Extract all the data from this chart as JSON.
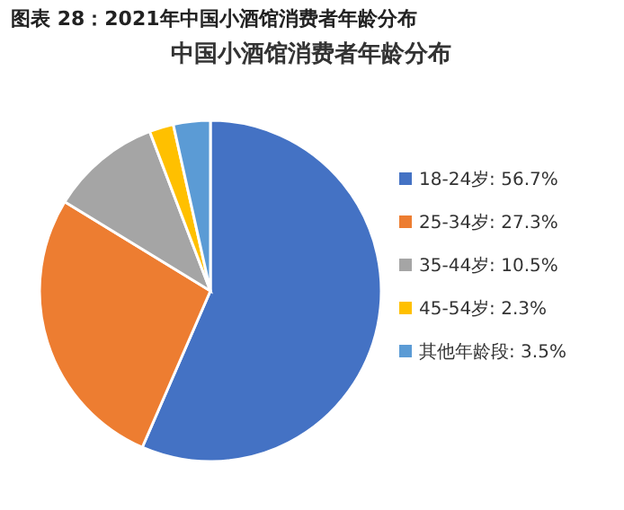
{
  "chart_data": {
    "type": "pie",
    "title": "中国小酒馆消费者年龄分布",
    "annotations": [
      "图表 28：2021年中国小酒馆消费者年龄分布"
    ],
    "categories": [
      "18-24岁",
      "25-34岁",
      "35-44岁",
      "45-54岁",
      "其他年龄段"
    ],
    "values": [
      56.7,
      27.3,
      10.5,
      2.3,
      3.5
    ],
    "value_labels": [
      "56.7%",
      "27.3%",
      "10.5%",
      "2.3%",
      "3.5%"
    ],
    "colors": [
      "#4472c4",
      "#ed7d31",
      "#a5a5a5",
      "#ffc000",
      "#5b9bd5"
    ],
    "legend": "right"
  }
}
